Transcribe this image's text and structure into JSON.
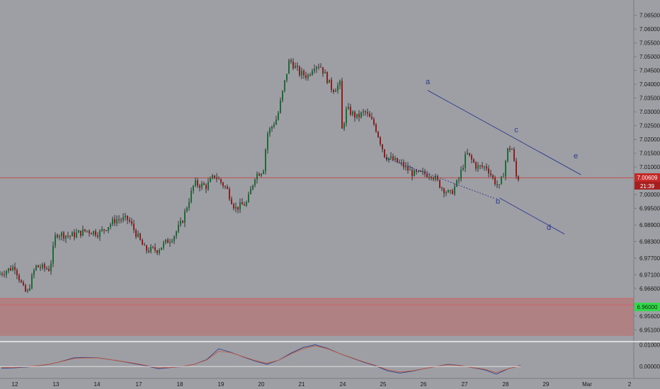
{
  "chart_data": {
    "type": "candlestick",
    "symbol_note": "",
    "price_axis": {
      "ticks": [
        "7.06500",
        "7.06000",
        "7.05500",
        "7.05000",
        "7.04500",
        "7.04000",
        "7.03500",
        "7.03000",
        "7.02500",
        "7.02000",
        "7.01500",
        "7.01000",
        "7.00500",
        "7.00000",
        "6.99500",
        "6.98900",
        "6.98300",
        "6.97700",
        "6.97100",
        "6.96600",
        "6.96000",
        "6.95600",
        "6.95100"
      ],
      "ylim": [
        6.948,
        7.069
      ],
      "last_price_label": "7.00609",
      "countdown_label": "21:39",
      "zone_label": "6.96000"
    },
    "time_axis": {
      "ticks": [
        "12",
        "13",
        "14",
        "17",
        "18",
        "19",
        "20",
        "21",
        "24",
        "25",
        "26",
        "27",
        "28",
        "29",
        "Mar",
        "2"
      ]
    },
    "annotations": {
      "wave_labels": [
        "a",
        "b",
        "c",
        "d",
        "e"
      ]
    },
    "horizontal_lines": {
      "last_price": 7.0061,
      "zone_top": 6.9624,
      "zone_bottom": 6.9488,
      "zone_line": 6.96
    },
    "trendlines": [
      {
        "name": "upper-channel",
        "from": {
          "day": 26.1,
          "price": 7.0378
        },
        "to": {
          "day": 29.85,
          "price": 7.0072
        }
      },
      {
        "name": "lower-channel",
        "from": {
          "day": 27.85,
          "price": 6.9988
        },
        "to": {
          "day": 29.45,
          "price": 6.9857
        }
      },
      {
        "name": "dotted-support",
        "from": {
          "day": 25.02,
          "price": 7.0135
        },
        "to": {
          "day": 27.75,
          "price": 6.9985
        }
      }
    ],
    "candles_anchor_path": [
      [
        11.93,
        6.971
      ],
      [
        12.05,
        6.974
      ],
      [
        12.25,
        6.966
      ],
      [
        12.35,
        6.964
      ],
      [
        12.55,
        6.974
      ],
      [
        12.9,
        6.973
      ],
      [
        13.05,
        6.986
      ],
      [
        13.4,
        6.985
      ],
      [
        13.8,
        6.987
      ],
      [
        14.1,
        6.986
      ],
      [
        14.5,
        6.991
      ],
      [
        14.8,
        6.991
      ],
      [
        17.2,
        6.98
      ],
      [
        17.5,
        6.98
      ],
      [
        17.9,
        6.985
      ],
      [
        18.1,
        6.99
      ],
      [
        18.4,
        7.004
      ],
      [
        18.7,
        7.003
      ],
      [
        18.9,
        7.007
      ],
      [
        19.2,
        7.002
      ],
      [
        19.4,
        6.995
      ],
      [
        19.7,
        6.997
      ],
      [
        19.9,
        7.007
      ],
      [
        20.1,
        7.009
      ],
      [
        20.2,
        7.022
      ],
      [
        20.45,
        7.028
      ],
      [
        20.75,
        7.049
      ],
      [
        21.0,
        7.044
      ],
      [
        21.2,
        7.043
      ],
      [
        21.35,
        7.047
      ],
      [
        21.5,
        7.047
      ],
      [
        21.8,
        7.038
      ],
      [
        22.1,
        7.04
      ],
      [
        22.3,
        7.053
      ],
      [
        22.5,
        7.049
      ],
      [
        22.7,
        7.039
      ],
      [
        22.95,
        7.035
      ],
      [
        23.1,
        7.026
      ],
      [
        23.4,
        7.019
      ],
      [
        23.7,
        7.021
      ],
      [
        23.9,
        7.02
      ],
      [
        24.15,
        7.031
      ],
      [
        24.4,
        7.028
      ],
      [
        24.6,
        7.03
      ],
      [
        24.85,
        7.025
      ],
      [
        25.1,
        7.014
      ],
      [
        25.5,
        7.011
      ],
      [
        25.8,
        7.0075
      ],
      [
        26.05,
        7.0075
      ],
      [
        26.25,
        7.0075
      ],
      [
        26.5,
        7.0025
      ],
      [
        26.7,
        7.0,
        0
      ],
      [
        26.9,
        7.005
      ],
      [
        27.1,
        7.015
      ],
      [
        27.35,
        7.01
      ],
      [
        27.6,
        7.01
      ],
      [
        27.75,
        7.0055
      ],
      [
        27.9,
        7.0025
      ],
      [
        28.0,
        7.008
      ],
      [
        28.1,
        7.016
      ],
      [
        28.2,
        7.0175
      ],
      [
        28.32,
        7.0061
      ]
    ],
    "oscillator": {
      "ticks": [
        "0.01000",
        "0.00000"
      ],
      "ylim": [
        -0.0045,
        0.0105
      ],
      "zero_line": 0.0,
      "series": [
        {
          "color": "#2d3f8f",
          "values": [
            -0.0008,
            -0.0006,
            -0.0003,
            0.0003,
            0.001,
            0.0024,
            0.004,
            0.0042,
            0.004,
            0.0032,
            0.0023,
            0.0013,
            0.0003,
            -0.001,
            -0.0005,
            0.0,
            0.001,
            0.0032,
            0.0082,
            0.0066,
            0.0045,
            0.0025,
            0.001,
            0.003,
            0.0062,
            0.0088,
            0.01,
            0.0084,
            0.006,
            0.004,
            0.002,
            0.0003,
            -0.002,
            -0.003,
            -0.0022,
            -0.001,
            0.0,
            0.001,
            0.0005,
            -0.0005,
            -0.0015,
            -0.0035,
            -0.001,
            0.0005
          ]
        },
        {
          "color": "#c05a40",
          "values": [
            -0.0005,
            -0.0004,
            -0.0001,
            0.0004,
            0.0011,
            0.0023,
            0.0037,
            0.004,
            0.0039,
            0.0032,
            0.0024,
            0.0015,
            0.0005,
            -0.0006,
            -0.0004,
            0.0001,
            0.001,
            0.003,
            0.007,
            0.0064,
            0.0046,
            0.0028,
            0.0015,
            0.003,
            0.0058,
            0.0082,
            0.0095,
            0.0082,
            0.006,
            0.0041,
            0.0022,
            0.0005,
            -0.0015,
            -0.0025,
            -0.002,
            -0.001,
            0.0,
            0.0008,
            0.0004,
            -0.0004,
            -0.0012,
            -0.0028,
            -0.001,
            0.0003
          ]
        }
      ]
    }
  },
  "colors": {
    "background": "#9e9fa4",
    "bull": "#1e6b38",
    "bear": "#8e1f1f",
    "wick": "#1a1a1a",
    "channel": "#2d3a8c",
    "last_price_line": "#c0504d",
    "zone_fill": "#b07d80",
    "zone_label_bg": "#33d94a",
    "price_tag_bg": "#c62828"
  }
}
